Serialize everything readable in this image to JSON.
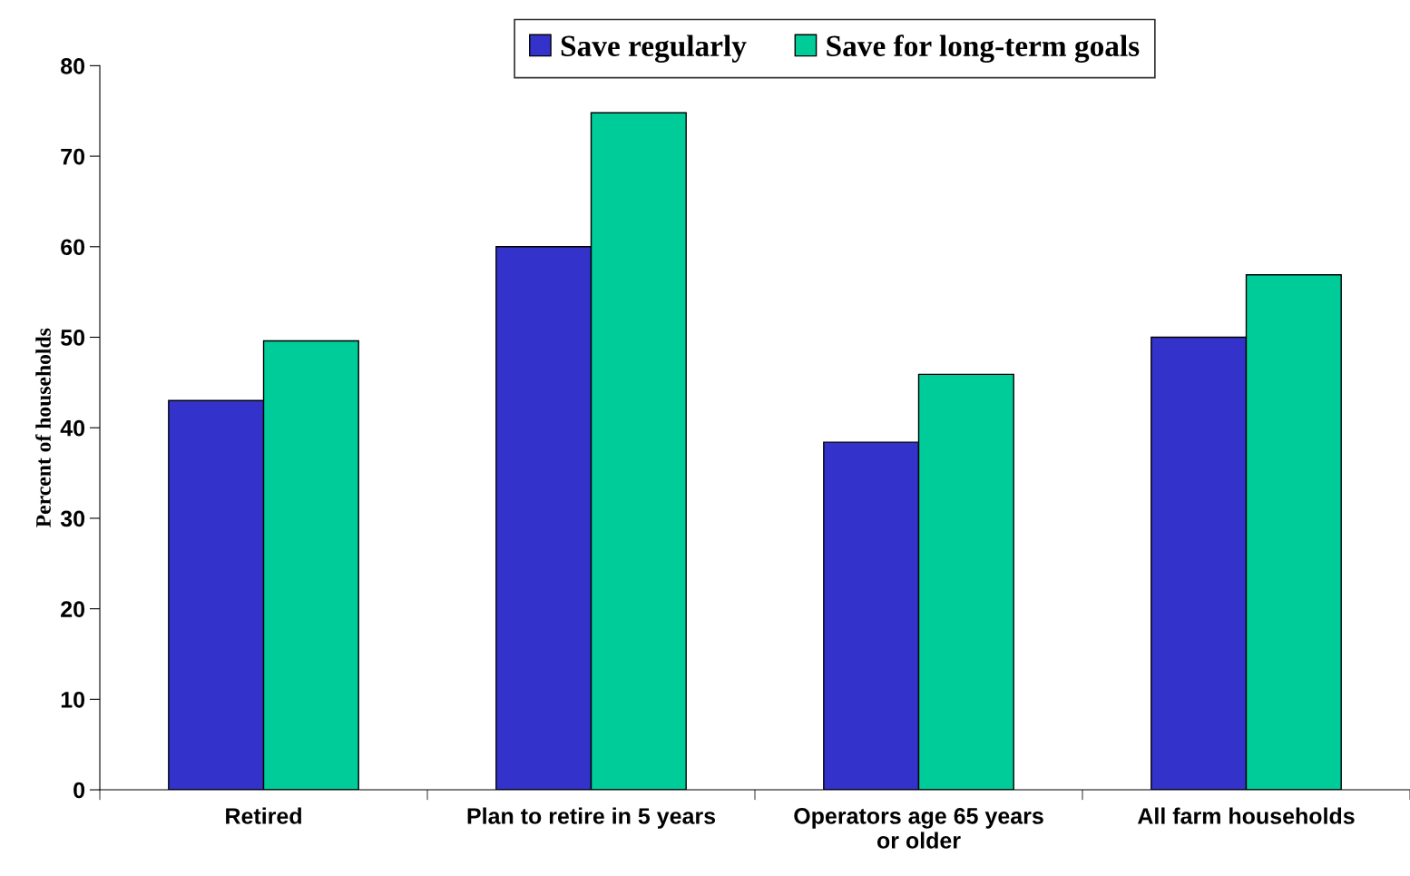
{
  "chart_data": {
    "type": "bar",
    "ylabel": "Percent of households",
    "categories": [
      "Retired",
      "Plan to retire in 5 years",
      "Operators age 65 years\nor older",
      "All farm households"
    ],
    "series": [
      {
        "name": "Save regularly",
        "color": "#3333cc",
        "values": [
          43.0,
          60.0,
          38.4,
          50.0
        ]
      },
      {
        "name": "Save for long-term goals",
        "color": "#00cc99",
        "values": [
          49.6,
          74.8,
          45.9,
          56.9
        ]
      }
    ],
    "ylim": [
      0,
      80
    ],
    "yticks": [
      0,
      10,
      20,
      30,
      40,
      50,
      60,
      70,
      80
    ],
    "grid": false,
    "legend": "top"
  }
}
